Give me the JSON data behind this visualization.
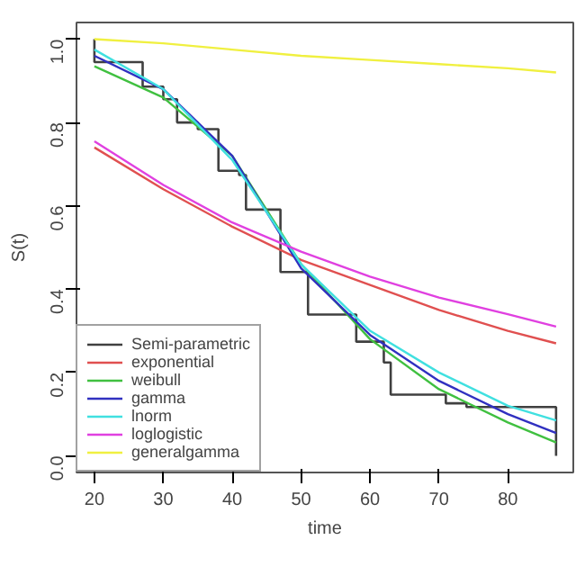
{
  "chart_data": {
    "type": "line",
    "xlabel": "time",
    "ylabel": "S(t)",
    "xlim": [
      17.4,
      89.5
    ],
    "ylim": [
      -0.04,
      1.04
    ],
    "xticks": [
      20,
      30,
      40,
      50,
      60,
      70,
      80
    ],
    "yticks": [
      {
        "value": 0,
        "label": "0.0"
      },
      {
        "value": 0.2,
        "label": "0.2"
      },
      {
        "value": 0.4,
        "label": "0.4"
      },
      {
        "value": 0.6,
        "label": "0.6"
      },
      {
        "value": 0.8,
        "label": "0.8"
      },
      {
        "value": 1,
        "label": "1.0"
      }
    ],
    "grid": false,
    "legend": "bottom left",
    "series": [
      {
        "name": "Semi-parametric",
        "type": "step",
        "color": "#404040",
        "x": [
          20,
          20,
          27,
          30,
          32,
          35,
          38,
          41,
          42,
          47,
          51,
          58,
          62,
          63,
          71,
          74,
          87,
          87
        ],
        "values": [
          1.0,
          0.945,
          0.886,
          0.856,
          0.8,
          0.784,
          0.684,
          0.674,
          0.591,
          0.441,
          0.339,
          0.274,
          0.224,
          0.147,
          0.126,
          0.117,
          0.117,
          0.0
        ]
      },
      {
        "name": "exponential",
        "color": "#e05050",
        "x": [
          20,
          30,
          40,
          50,
          60,
          70,
          80,
          87
        ],
        "values": [
          0.74,
          0.64,
          0.55,
          0.47,
          0.41,
          0.35,
          0.3,
          0.27
        ]
      },
      {
        "name": "weibull",
        "color": "#40c040",
        "x": [
          20,
          30,
          40,
          50,
          60,
          70,
          80,
          87
        ],
        "values": [
          0.935,
          0.86,
          0.72,
          0.46,
          0.28,
          0.16,
          0.08,
          0.032
        ]
      },
      {
        "name": "gamma",
        "color": "#3030c0",
        "x": [
          20,
          30,
          40,
          50,
          60,
          70,
          80,
          87
        ],
        "values": [
          0.96,
          0.88,
          0.72,
          0.45,
          0.29,
          0.18,
          0.1,
          0.055
        ]
      },
      {
        "name": "lnorm",
        "color": "#40e0e0",
        "x": [
          20,
          30,
          40,
          50,
          60,
          70,
          80,
          87
        ],
        "values": [
          0.975,
          0.88,
          0.71,
          0.46,
          0.3,
          0.2,
          0.12,
          0.085
        ]
      },
      {
        "name": "loglogistic",
        "color": "#e040e0",
        "x": [
          20,
          30,
          40,
          50,
          60,
          70,
          80,
          87
        ],
        "values": [
          0.755,
          0.65,
          0.56,
          0.49,
          0.43,
          0.38,
          0.34,
          0.31
        ]
      },
      {
        "name": "generalgamma",
        "color": "#f0f040",
        "x": [
          20,
          30,
          40,
          50,
          60,
          70,
          80,
          87
        ],
        "values": [
          1.0,
          0.99,
          0.975,
          0.96,
          0.95,
          0.94,
          0.93,
          0.92
        ]
      }
    ]
  }
}
